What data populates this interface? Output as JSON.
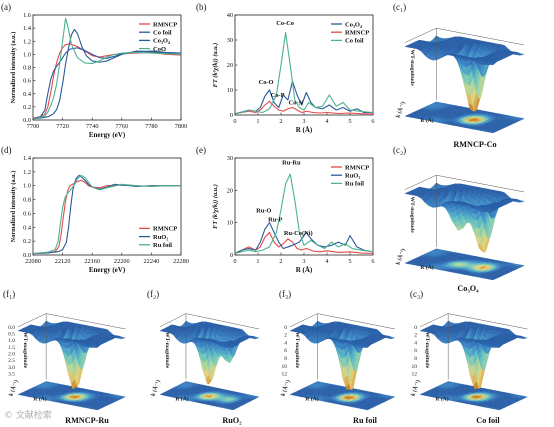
{
  "colors": {
    "RMNCP": "#e8484b",
    "Co_foil": "#2b5a9c",
    "Co3O4": "#2b5a9c",
    "CoO": "#4cb38e",
    "RuO2": "#2b5a9c",
    "Ru_foil": "#4cb38e",
    "surface_high": "#2a5fa8",
    "surface_mid": "#62c0c4",
    "surface_low": "#c8872b"
  },
  "watermark": "© 文献检索",
  "chart_data": [
    {
      "id": "a",
      "panel_label": "(a)",
      "type": "line",
      "xlabel": "Energy (eV)",
      "ylabel": "Normalized intensity (a.u.)",
      "xlim": [
        7700,
        7800
      ],
      "ylim": [
        0,
        1.6
      ],
      "xticks": [
        "7700",
        "7720",
        "7740",
        "7760",
        "7780",
        "7800"
      ],
      "yticks": [
        "0.0",
        "0.2",
        "0.4",
        "0.6",
        "0.8",
        "1.0",
        "1.2",
        "1.4",
        "1.6"
      ],
      "legend": [
        "RMNCP",
        "Co foil",
        "Co₃O₄",
        "CoO"
      ],
      "legend_position": "top-right",
      "series": [
        {
          "name": "RMNCP",
          "color": "#e8484b",
          "x": [
            7700,
            7705,
            7708,
            7710,
            7712,
            7714,
            7716,
            7718,
            7720,
            7722,
            7725,
            7730,
            7735,
            7740,
            7745,
            7750,
            7755,
            7760,
            7770,
            7780,
            7790,
            7800
          ],
          "y": [
            0.03,
            0.05,
            0.09,
            0.2,
            0.42,
            0.68,
            0.88,
            1.02,
            1.1,
            1.15,
            1.16,
            1.12,
            1.05,
            0.98,
            0.96,
            0.98,
            1.0,
            1.01,
            1.02,
            1.03,
            1.0,
            0.99
          ]
        },
        {
          "name": "Co foil",
          "color": "#2b5a9c",
          "x": [
            7700,
            7705,
            7708,
            7710,
            7712,
            7714,
            7716,
            7718,
            7720,
            7722,
            7725,
            7730,
            7735,
            7740,
            7745,
            7750,
            7755,
            7760,
            7770,
            7780,
            7790,
            7800
          ],
          "y": [
            0.02,
            0.05,
            0.15,
            0.4,
            0.62,
            0.75,
            0.82,
            0.88,
            0.95,
            1.02,
            1.08,
            1.1,
            1.06,
            1.0,
            0.95,
            0.94,
            0.97,
            1.01,
            1.04,
            1.05,
            1.03,
            1.02
          ]
        },
        {
          "name": "Co₃O₄",
          "color": "#2b5a9c",
          "x": [
            7700,
            7705,
            7710,
            7712,
            7714,
            7716,
            7718,
            7720,
            7722,
            7724,
            7726,
            7728,
            7730,
            7733,
            7736,
            7740,
            7745,
            7750,
            7755,
            7760,
            7770,
            7780,
            7790,
            7800
          ],
          "y": [
            0.02,
            0.03,
            0.05,
            0.07,
            0.1,
            0.16,
            0.3,
            0.55,
            0.85,
            1.1,
            1.3,
            1.38,
            1.32,
            1.12,
            0.98,
            0.9,
            0.88,
            0.9,
            0.95,
            1.0,
            1.05,
            1.04,
            1.02,
            1.02
          ]
        },
        {
          "name": "CoO",
          "color": "#4cb38e",
          "x": [
            7700,
            7705,
            7708,
            7710,
            7712,
            7714,
            7716,
            7718,
            7720,
            7722,
            7724,
            7726,
            7730,
            7735,
            7740,
            7745,
            7750,
            7755,
            7760,
            7770,
            7780,
            7790,
            7800
          ],
          "y": [
            0.02,
            0.04,
            0.06,
            0.12,
            0.22,
            0.35,
            0.55,
            0.85,
            1.2,
            1.55,
            1.38,
            1.15,
            0.95,
            0.87,
            0.86,
            0.9,
            0.96,
            1.0,
            1.02,
            1.03,
            1.02,
            1.01,
            1.0
          ]
        }
      ]
    },
    {
      "id": "b",
      "panel_label": "(b)",
      "type": "line",
      "xlabel": "R (Å)",
      "ylabel": "FT (k³χ(k)) (a.u.)",
      "xlim": [
        0,
        6
      ],
      "ylim": [
        0,
        40
      ],
      "xticks": [
        "0",
        "1",
        "2",
        "3",
        "4",
        "5",
        "6"
      ],
      "yticks": [
        "0",
        "10",
        "20",
        "30",
        "40"
      ],
      "legend": [
        "Co₃O₄",
        "RMNCP",
        "Co foil"
      ],
      "legend_position": "top-right",
      "annotations": [
        {
          "text": "Co-Co",
          "x": 2.18,
          "y": 36
        },
        {
          "text": "Co-O",
          "x": 1.35,
          "y": 12.5
        },
        {
          "text": "Co-P",
          "x": 1.85,
          "y": 7.2
        },
        {
          "text": "Co-N",
          "x": 2.65,
          "y": 4.2
        }
      ],
      "series": [
        {
          "name": "Co₃O₄",
          "color": "#2b5a9c",
          "x": [
            0,
            0.3,
            0.6,
            0.9,
            1.1,
            1.3,
            1.5,
            1.7,
            1.9,
            2.1,
            2.3,
            2.5,
            2.7,
            2.9,
            3.1,
            3.3,
            3.5,
            3.8,
            4.1,
            4.4,
            4.7,
            5.0,
            5.3,
            5.6,
            6.0
          ],
          "y": [
            0.5,
            1.2,
            2,
            1.5,
            3,
            7.5,
            10,
            5,
            3,
            8,
            6,
            13.5,
            8,
            4,
            9,
            5,
            3,
            2.5,
            4,
            2,
            3,
            1.5,
            2.5,
            1,
            1
          ]
        },
        {
          "name": "RMNCP",
          "color": "#e8484b",
          "x": [
            0,
            0.3,
            0.6,
            0.9,
            1.1,
            1.3,
            1.5,
            1.7,
            1.9,
            2.1,
            2.3,
            2.5,
            2.7,
            2.9,
            3.1,
            3.4,
            3.7,
            4.0,
            4.5,
            5.0,
            5.5,
            6.0
          ],
          "y": [
            0.5,
            1,
            1.5,
            1,
            2,
            4,
            5.5,
            3.5,
            2,
            1.5,
            2.5,
            3,
            2,
            1,
            1.5,
            1,
            0.8,
            1,
            0.6,
            0.8,
            0.5,
            0.5
          ]
        },
        {
          "name": "Co foil",
          "color": "#4cb38e",
          "x": [
            0,
            0.3,
            0.6,
            0.9,
            1.2,
            1.5,
            1.8,
            2.0,
            2.2,
            2.4,
            2.6,
            2.8,
            3.0,
            3.2,
            3.5,
            3.8,
            4.1,
            4.4,
            4.7,
            5.0,
            5.4,
            6.0
          ],
          "y": [
            0.5,
            1,
            2,
            1.5,
            1,
            2.5,
            8,
            20,
            33,
            20,
            6,
            3,
            2,
            5,
            3,
            3.5,
            8,
            3.5,
            5,
            2,
            1.5,
            1
          ]
        }
      ]
    },
    {
      "id": "c1",
      "panel_label": "(c₁)",
      "type": "heatmap",
      "caption": "RMNCP-Co",
      "zlabel": "WT-magnitude",
      "xlabel": "k (Å⁻¹)",
      "ylabel": "R (Å)",
      "wells": [
        {
          "u": 0.62,
          "v": 0.55,
          "depth": 0.95
        }
      ],
      "levels": {
        "high": "#2a5fa8",
        "low": "#c8872b"
      }
    },
    {
      "id": "d",
      "panel_label": "(d)",
      "type": "line",
      "xlabel": "Energy (eV)",
      "ylabel": "Normalized intensity (a.u.)",
      "xlim": [
        22080,
        22280
      ],
      "ylim": [
        0,
        1.4
      ],
      "xticks": [
        "22080",
        "22120",
        "22160",
        "22200",
        "22240",
        "22280"
      ],
      "yticks": [
        "0.0",
        "0.2",
        "0.4",
        "0.6",
        "0.8",
        "1.0",
        "1.2",
        "1.4"
      ],
      "legend": [
        "RMNCP",
        "RuO₂",
        "Ru foil"
      ],
      "legend_position": "bottom-right",
      "series": [
        {
          "name": "RMNCP",
          "color": "#e8484b",
          "x": [
            22080,
            22100,
            22110,
            22115,
            22118,
            22121,
            22124,
            22127,
            22130,
            22135,
            22140,
            22145,
            22150,
            22155,
            22160,
            22170,
            22180,
            22200,
            22220,
            22240,
            22260,
            22280
          ],
          "y": [
            0.02,
            0.03,
            0.05,
            0.12,
            0.3,
            0.55,
            0.78,
            0.93,
            1.0,
            1.03,
            1.06,
            1.08,
            1.05,
            1.0,
            0.98,
            0.97,
            1.0,
            1.01,
            1.0,
            0.99,
            1.0,
            1.0
          ]
        },
        {
          "name": "RuO₂",
          "color": "#2b5a9c",
          "x": [
            22080,
            22100,
            22115,
            22120,
            22125,
            22128,
            22131,
            22134,
            22138,
            22142,
            22146,
            22150,
            22155,
            22160,
            22170,
            22180,
            22190,
            22200,
            22220,
            22240,
            22260,
            22280
          ],
          "y": [
            0.02,
            0.03,
            0.05,
            0.08,
            0.18,
            0.4,
            0.7,
            0.95,
            1.1,
            1.15,
            1.12,
            1.08,
            1.02,
            0.98,
            0.95,
            0.98,
            1.02,
            1.01,
            0.99,
            1.0,
            1.0,
            1.0
          ]
        },
        {
          "name": "Ru foil",
          "color": "#4cb38e",
          "x": [
            22080,
            22100,
            22110,
            22114,
            22117,
            22120,
            22123,
            22126,
            22130,
            22135,
            22140,
            22145,
            22150,
            22155,
            22160,
            22170,
            22180,
            22200,
            22220,
            22240,
            22260,
            22280
          ],
          "y": [
            0.02,
            0.04,
            0.08,
            0.2,
            0.45,
            0.68,
            0.82,
            0.88,
            0.93,
            1.0,
            1.1,
            1.15,
            1.12,
            1.05,
            0.98,
            0.94,
            0.97,
            1.02,
            1.0,
            0.99,
            1.0,
            1.0
          ]
        }
      ]
    },
    {
      "id": "e",
      "panel_label": "(e)",
      "type": "line",
      "xlabel": "R (Å)",
      "ylabel": "FT (k³χ(k)) (a.u.)",
      "xlim": [
        0,
        6
      ],
      "ylim": [
        0,
        30
      ],
      "xticks": [
        "0",
        "1",
        "2",
        "3",
        "4",
        "5",
        "6"
      ],
      "yticks": [
        "0",
        "10",
        "20",
        "30"
      ],
      "legend": [
        "RMNCP",
        "RuO₂",
        "Ru foil"
      ],
      "legend_position": "top-right",
      "annotations": [
        {
          "text": "Ru-Ru",
          "x": 2.45,
          "y": 28
        },
        {
          "text": "Ru-O",
          "x": 1.25,
          "y": 13.2
        },
        {
          "text": "Ru-P",
          "x": 1.75,
          "y": 10.3
        },
        {
          "text": "Ru-Co(Ni)",
          "x": 2.75,
          "y": 6.2
        }
      ],
      "series": [
        {
          "name": "RMNCP",
          "color": "#e8484b",
          "x": [
            0,
            0.3,
            0.6,
            0.9,
            1.1,
            1.3,
            1.5,
            1.7,
            1.9,
            2.1,
            2.3,
            2.5,
            2.7,
            2.9,
            3.1,
            3.4,
            3.7,
            4.0,
            4.5,
            5.0,
            5.5,
            6.0
          ],
          "y": [
            0.5,
            1.5,
            2.5,
            1.5,
            2.5,
            5.5,
            7,
            4,
            2.5,
            3.5,
            5,
            4,
            2,
            1.5,
            2,
            1.2,
            1,
            1.3,
            0.8,
            1,
            0.6,
            0.5
          ]
        },
        {
          "name": "RuO₂",
          "color": "#2b5a9c",
          "x": [
            0,
            0.3,
            0.6,
            0.9,
            1.1,
            1.3,
            1.5,
            1.7,
            1.9,
            2.1,
            2.3,
            2.5,
            2.8,
            3.1,
            3.3,
            3.6,
            3.9,
            4.2,
            4.5,
            4.8,
            5.0,
            5.3,
            5.6,
            6.0
          ],
          "y": [
            0.5,
            1.5,
            2,
            1.5,
            4,
            8,
            10,
            7,
            4,
            2,
            2.5,
            3,
            4,
            7,
            5,
            3,
            2.5,
            3,
            4,
            3,
            6,
            2.5,
            1.5,
            1
          ]
        },
        {
          "name": "Ru foil",
          "color": "#4cb38e",
          "x": [
            0,
            0.3,
            0.6,
            0.9,
            1.2,
            1.5,
            1.8,
            2.0,
            2.2,
            2.4,
            2.6,
            2.8,
            3.0,
            3.3,
            3.6,
            3.9,
            4.2,
            4.5,
            4.8,
            5.1,
            5.5,
            6.0
          ],
          "y": [
            0.5,
            1,
            1.5,
            1,
            1.5,
            2.5,
            7,
            14,
            22,
            25,
            17,
            7,
            3,
            4.5,
            3,
            2,
            4,
            2.5,
            3.5,
            2,
            1.5,
            1
          ]
        }
      ]
    },
    {
      "id": "c2",
      "panel_label": "(c₂)",
      "type": "heatmap",
      "caption": "Co₃O₄",
      "zlabel": "WT-magnitude",
      "xlabel": "k (Å⁻¹)",
      "ylabel": "R (Å)",
      "wells": [
        {
          "u": 0.45,
          "v": 0.55,
          "depth": 0.6
        },
        {
          "u": 0.72,
          "v": 0.5,
          "depth": 0.85
        }
      ],
      "levels": {
        "high": "#2a5fa8",
        "low": "#c8872b"
      }
    },
    {
      "id": "f1",
      "panel_label": "(f₁)",
      "type": "heatmap",
      "caption": "RMNCP-Ru",
      "zlabel": "WT-magnitude",
      "xlabel": "k (Å⁻¹)",
      "ylabel": "R (Å)",
      "zticks": [
        "0.0",
        "0.5",
        "1.0",
        "1.5",
        "2.0",
        "2.5",
        "3.0",
        "3.5"
      ],
      "wells": [
        {
          "u": 0.55,
          "v": 0.55,
          "depth": 0.95
        }
      ],
      "levels": {
        "high": "#2a5fa8",
        "low": "#c8872b"
      }
    },
    {
      "id": "f2",
      "panel_label": "(f₂)",
      "type": "heatmap",
      "caption": "RuO₂",
      "zlabel": "WT-magnitude",
      "xlabel": "k (Å⁻¹)",
      "ylabel": "R (Å)",
      "wells": [
        {
          "u": 0.5,
          "v": 0.55,
          "depth": 0.9
        },
        {
          "u": 0.78,
          "v": 0.5,
          "depth": 0.5
        }
      ],
      "levels": {
        "high": "#2a5fa8",
        "low": "#c8872b"
      }
    },
    {
      "id": "f3",
      "panel_label": "(f₃)",
      "type": "heatmap",
      "caption": "Ru foil",
      "zlabel": "WT-magnitude",
      "xlabel": "k (Å⁻¹)",
      "ylabel": "R (Å)",
      "zticks": [
        "0",
        "2",
        "4",
        "6",
        "8",
        "10",
        "12"
      ],
      "wells": [
        {
          "u": 0.6,
          "v": 0.55,
          "depth": 1.0
        }
      ],
      "levels": {
        "high": "#2a5fa8",
        "low": "#c8872b"
      }
    },
    {
      "id": "c3",
      "panel_label": "(c₃)",
      "type": "heatmap",
      "caption": "Co foil",
      "zlabel": "WT-magnitude",
      "xlabel": "k (Å⁻¹)",
      "ylabel": "R (Å)",
      "zticks": [
        "0",
        "2",
        "4",
        "6",
        "8",
        "10",
        "12"
      ],
      "wells": [
        {
          "u": 0.55,
          "v": 0.55,
          "depth": 1.0
        }
      ],
      "levels": {
        "high": "#2a5fa8",
        "low": "#c8872b"
      }
    }
  ]
}
